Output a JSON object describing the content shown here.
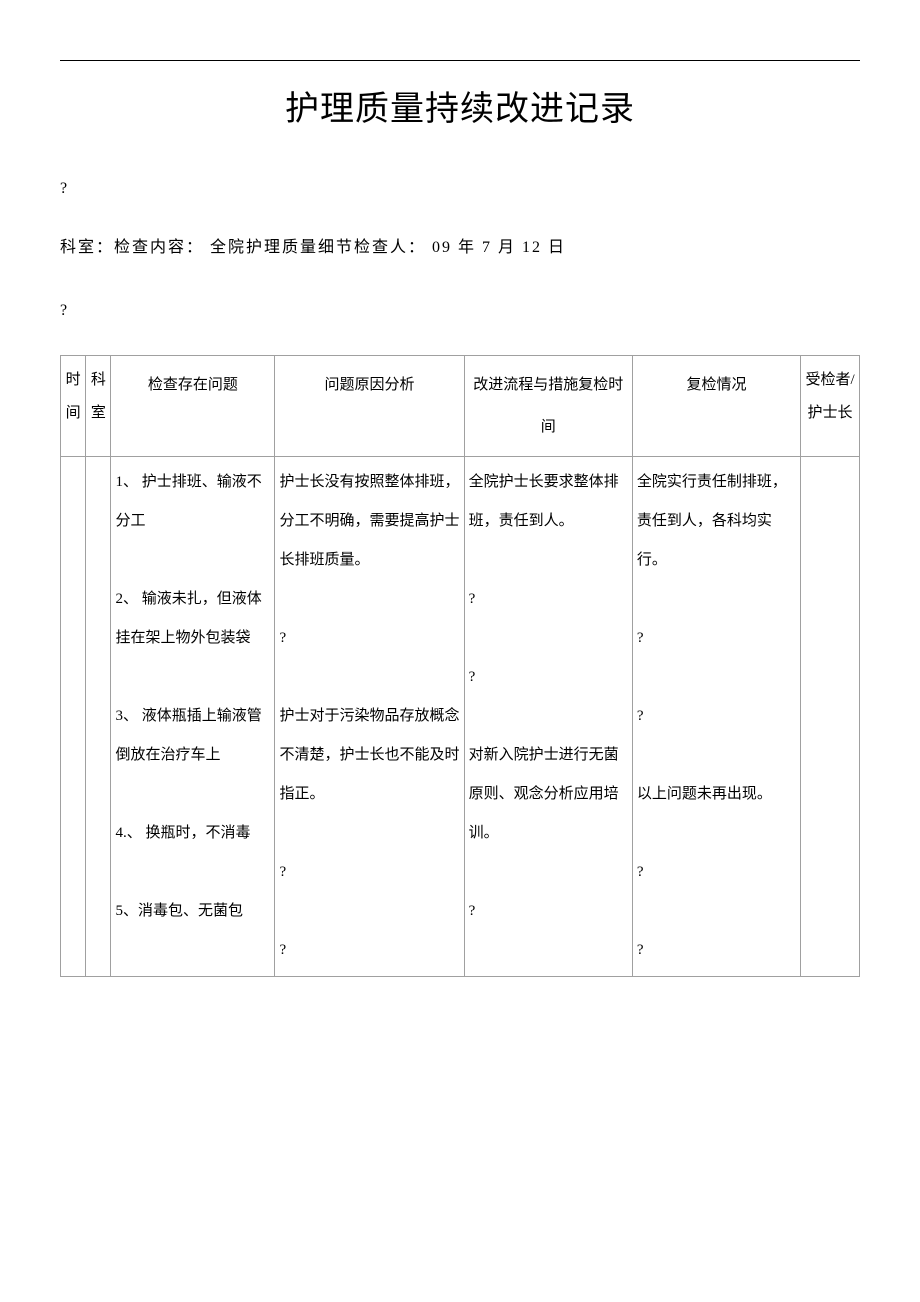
{
  "title": "护理质量持续改进记录",
  "qmark": "?",
  "meta_line": "科室：检查内容：  全院护理质量细节检查人： 09 年 7 月 12 日",
  "headers": {
    "time": "时间",
    "dept": "科室",
    "problem": "检查存在问题",
    "analysis": "问题原因分析",
    "measures": "改进流程与措施复检时间",
    "recheck": "复检情况",
    "person": "受检者/护士长"
  },
  "row": {
    "problem": "1、 护士排班、输液不分工\n\n2、 输液未扎，但液体挂在架上物外包装袋\n\n3、 液体瓶插上输液管倒放在治疗车上\n\n4.、 换瓶时，不消毒\n\n5、消毒包、无菌包",
    "analysis": "护士长没有按照整体排班，分工不明确，需要提高护士长排班质量。\n\n?\n\n护士对于污染物品存放概念不清楚，护士长也不能及时指正。\n\n?\n\n?",
    "measures": "全院护士长要求整体排班，责任到人。\n\n?\n\n?\n\n对新入院护士进行无菌原则、观念分析应用培训。\n\n?",
    "recheck": "全院实行责任制排班，责任到人，各科均实行。\n\n?\n\n?\n\n以上问题未再出现。\n\n?\n\n?"
  }
}
